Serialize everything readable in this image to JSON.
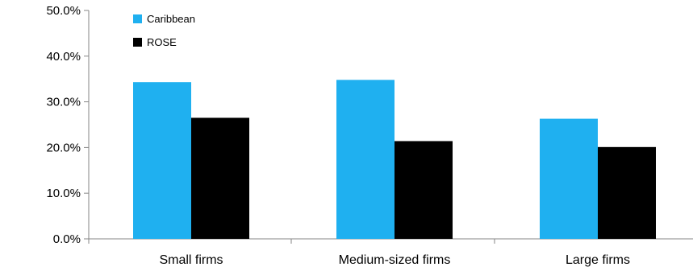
{
  "chart_data": {
    "type": "bar",
    "title": "",
    "xlabel": "",
    "ylabel": "",
    "categories": [
      "Small firms",
      "Medium-sized firms",
      "Large firms"
    ],
    "series": [
      {
        "name": "Caribbean",
        "color": "#1fb0f0",
        "values": [
          34.3,
          34.8,
          26.3
        ]
      },
      {
        "name": "ROSE",
        "color": "#000000",
        "values": [
          26.5,
          21.4,
          20.1
        ]
      }
    ],
    "ylim": [
      0,
      50
    ],
    "yticks": [
      0,
      10,
      20,
      30,
      40,
      50
    ],
    "ytick_labels": [
      "0.0%",
      "10.0%",
      "20.0%",
      "30.0%",
      "40.0%",
      "50.0%"
    ],
    "grid": false,
    "legend_position": "top-left"
  }
}
